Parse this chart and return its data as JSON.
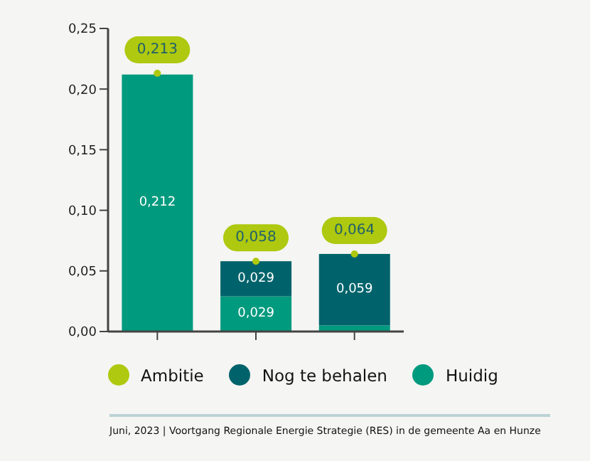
{
  "chart_data": {
    "type": "bar",
    "stacked": true,
    "categories": [
      null,
      null,
      null
    ],
    "series": [
      {
        "name": "Huidig",
        "color": "#009a7e",
        "values": [
          0.212,
          0.029,
          0.005
        ],
        "value_labels": [
          "0,212",
          "0,029",
          null
        ]
      },
      {
        "name": "Nog te behalen",
        "color": "#00636b",
        "values": [
          0,
          0.029,
          0.059
        ],
        "value_labels": [
          null,
          "0,029",
          "0,059"
        ]
      },
      {
        "name": "Ambitie",
        "type": "scatter",
        "color": "#aec90f",
        "values": [
          0.213,
          0.058,
          0.064
        ],
        "value_labels": [
          "0,213",
          "0,058",
          "0,064"
        ]
      }
    ],
    "ylim": [
      0,
      0.25
    ],
    "yticks": [
      {
        "value": 0,
        "label": "0,00"
      },
      {
        "value": 0.05,
        "label": "0,05"
      },
      {
        "value": 0.1,
        "label": "0,10"
      },
      {
        "value": 0.15,
        "label": "0,15"
      },
      {
        "value": 0.2,
        "label": "0,20"
      },
      {
        "value": 0.25,
        "label": "0,25"
      }
    ],
    "grid": false,
    "legend": "bottom",
    "annotations": [
      "Juni, 2023 | Voortgang Regionale Energie Strategie (RES) in de gemeente Aa en Hunze"
    ]
  }
}
